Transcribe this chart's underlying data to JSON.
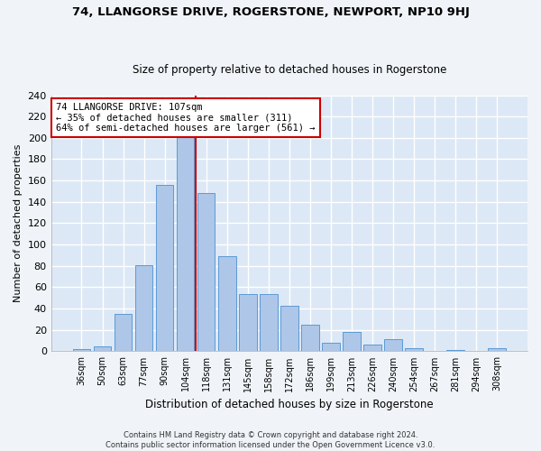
{
  "title": "74, LLANGORSE DRIVE, ROGERSTONE, NEWPORT, NP10 9HJ",
  "subtitle": "Size of property relative to detached houses in Rogerstone",
  "xlabel": "Distribution of detached houses by size in Rogerstone",
  "ylabel": "Number of detached properties",
  "categories": [
    "36sqm",
    "50sqm",
    "63sqm",
    "77sqm",
    "90sqm",
    "104sqm",
    "118sqm",
    "131sqm",
    "145sqm",
    "158sqm",
    "172sqm",
    "186sqm",
    "199sqm",
    "213sqm",
    "226sqm",
    "240sqm",
    "254sqm",
    "267sqm",
    "281sqm",
    "294sqm",
    "308sqm"
  ],
  "values": [
    2,
    5,
    35,
    81,
    156,
    202,
    148,
    89,
    54,
    54,
    43,
    25,
    8,
    18,
    6,
    11,
    3,
    0,
    1,
    0,
    3
  ],
  "bar_color": "#aec6e8",
  "bar_edgecolor": "#5b9bd5",
  "red_line_x": 5.5,
  "annotation_title": "74 LLANGORSE DRIVE: 107sqm",
  "annotation_line1": "← 35% of detached houses are smaller (311)",
  "annotation_line2": "64% of semi-detached houses are larger (561) →",
  "annotation_box_color": "#ffffff",
  "annotation_box_edgecolor": "#cc0000",
  "background_color": "#dce8f5",
  "grid_color": "#ffffff",
  "footnote1": "Contains HM Land Registry data © Crown copyright and database right 2024.",
  "footnote2": "Contains public sector information licensed under the Open Government Licence v3.0.",
  "fig_background": "#f0f4f8",
  "ylim": [
    0,
    240
  ],
  "yticks": [
    0,
    20,
    40,
    60,
    80,
    100,
    120,
    140,
    160,
    180,
    200,
    220,
    240
  ]
}
